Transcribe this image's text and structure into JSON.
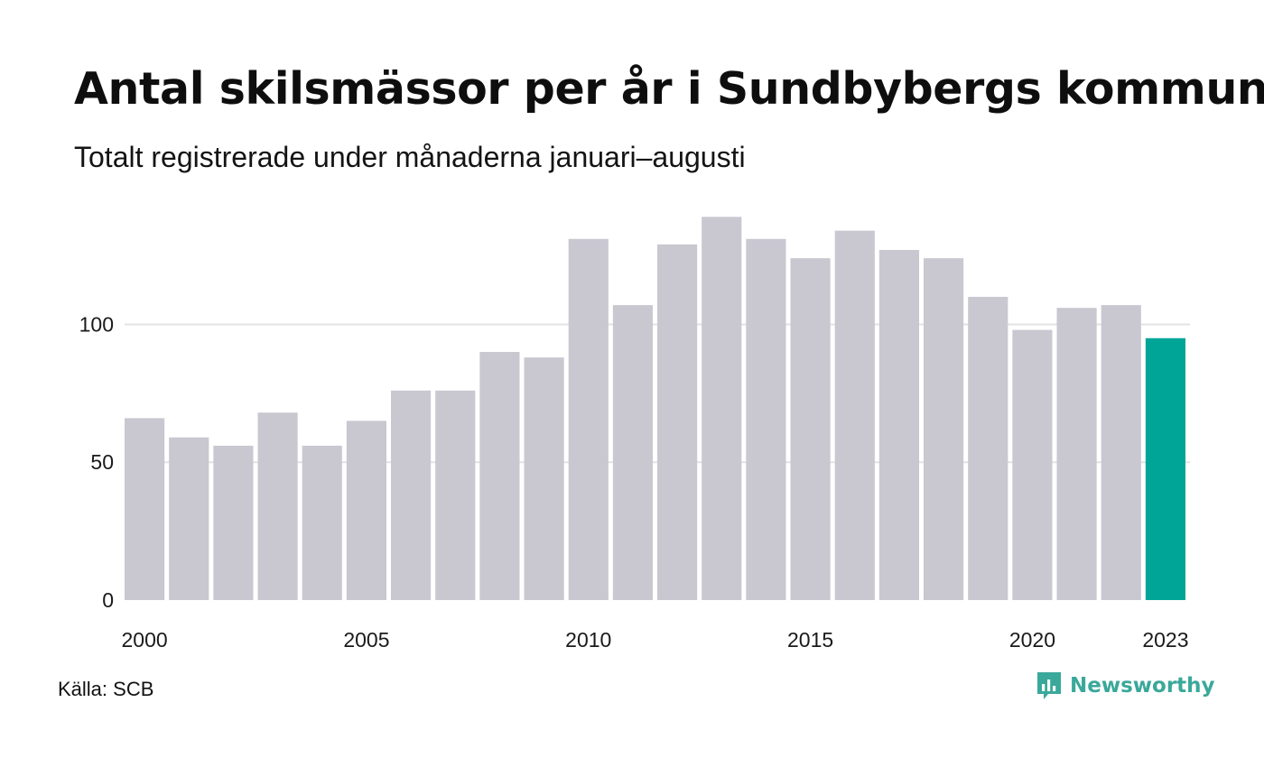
{
  "header": {
    "title": "Antal skilsmässor per år i Sundbybergs kommun",
    "subtitle": "Totalt registrerade under månaderna januari–augusti"
  },
  "footer": {
    "source": "Källa: SCB",
    "brand": "Newsworthy",
    "brand_icon": "bar-chart-speech-bubble-icon"
  },
  "colors": {
    "bar": "#c9c8d1",
    "highlight": "#00a598",
    "grid": "#e3e3e3",
    "brand": "#3aa89a"
  },
  "chart_data": {
    "type": "bar",
    "title": "Antal skilsmässor per år i Sundbybergs kommun",
    "subtitle": "Totalt registrerade under månaderna januari–augusti",
    "categories": [
      "2000",
      "2001",
      "2002",
      "2003",
      "2004",
      "2005",
      "2006",
      "2007",
      "2008",
      "2009",
      "2010",
      "2011",
      "2012",
      "2013",
      "2014",
      "2015",
      "2016",
      "2017",
      "2018",
      "2019",
      "2020",
      "2021",
      "2022",
      "2023"
    ],
    "values": [
      66,
      59,
      56,
      68,
      56,
      65,
      76,
      76,
      90,
      88,
      131,
      107,
      129,
      139,
      131,
      124,
      134,
      127,
      124,
      110,
      98,
      106,
      107,
      95
    ],
    "highlight_category": "2023",
    "x_tick_labels": [
      "2000",
      "2005",
      "2010",
      "2015",
      "2020",
      "2023"
    ],
    "y_ticks": [
      0,
      50,
      100
    ],
    "ylim": [
      0,
      145
    ],
    "grid": true,
    "xlabel": "",
    "ylabel": ""
  }
}
